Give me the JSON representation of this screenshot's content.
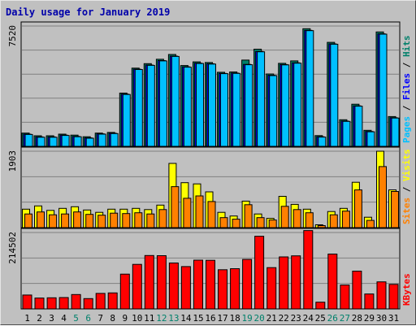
{
  "chart_data": {
    "type": "bar",
    "title": "Daily usage for January 2019",
    "x": [
      "1",
      "2",
      "3",
      "4",
      "5",
      "6",
      "7",
      "8",
      "9",
      "10",
      "11",
      "12",
      "13",
      "14",
      "15",
      "16",
      "17",
      "18",
      "19",
      "20",
      "21",
      "22",
      "23",
      "24",
      "25",
      "26",
      "27",
      "28",
      "29",
      "30",
      "31"
    ],
    "weekend_days": [
      "5",
      "6",
      "12",
      "13",
      "19",
      "20",
      "26",
      "27"
    ],
    "panels": [
      {
        "name": "top",
        "max_label": "7520",
        "ylim": [
          0,
          7520
        ],
        "legend": [
          "Pages",
          "Files",
          "Hits"
        ],
        "series": [
          {
            "name": "Hits",
            "color": "#00806b",
            "values": [
              830,
              660,
              660,
              760,
              700,
              600,
              830,
              870,
              3330,
              4890,
              5170,
              5440,
              5740,
              5050,
              5280,
              5240,
              4630,
              4650,
              5390,
              6070,
              4520,
              5190,
              5340,
              7350,
              670,
              6500,
              1660,
              2630,
              1000,
              7150,
              1860
            ]
          },
          {
            "name": "Files",
            "color": "#0000ff",
            "values": [
              760,
              590,
              590,
              700,
              620,
              530,
              780,
              820,
              3260,
              4820,
              5080,
              5360,
              5640,
              4970,
              5200,
              5160,
              4560,
              4580,
              5120,
              5930,
              4440,
              5110,
              5220,
              7250,
              600,
              6400,
              1580,
              2530,
              930,
              7030,
              1790
            ]
          },
          {
            "name": "Pages",
            "color": "#00c0ff",
            "values": [
              740,
              570,
              570,
              680,
              600,
              510,
              760,
              800,
              3240,
              4800,
              5060,
              5340,
              5620,
              4950,
              5180,
              5140,
              4540,
              4560,
              5100,
              5910,
              4420,
              5090,
              5200,
              7230,
              580,
              6380,
              1560,
              2510,
              910,
              7010,
              1770
            ]
          }
        ]
      },
      {
        "name": "middle",
        "max_label": "1903",
        "ylim": [
          0,
          1903
        ],
        "legend": [
          "Sites",
          "Visits"
        ],
        "series": [
          {
            "name": "Visits",
            "color": "#ffff00",
            "values": [
              460,
              540,
              430,
              480,
              520,
              440,
              380,
              460,
              460,
              480,
              450,
              560,
              1600,
              1120,
              1090,
              890,
              380,
              290,
              660,
              340,
              230,
              780,
              580,
              460,
              70,
              400,
              480,
              1130,
              260,
              1903,
              940
            ]
          },
          {
            "name": "Sites",
            "color": "#ff8000",
            "values": [
              340,
              390,
              320,
              340,
              390,
              330,
              310,
              360,
              350,
              370,
              340,
              450,
              1020,
              730,
              790,
              650,
              250,
              210,
              570,
              250,
              190,
              530,
              450,
              370,
              50,
              320,
              410,
              940,
              180,
              1520,
              900
            ]
          }
        ]
      },
      {
        "name": "bottom",
        "max_label": "214502",
        "ylim": [
          0,
          214502
        ],
        "legend": [
          "KBytes"
        ],
        "series": [
          {
            "name": "KBytes",
            "color": "#ff0000",
            "values": [
              39000,
              30500,
              31200,
              32000,
              40500,
              29000,
              43500,
              45000,
              97600,
              125000,
              150000,
              149500,
              129000,
              119000,
              137000,
              136500,
              110000,
              113000,
              139000,
              204000,
              116000,
              146000,
              149000,
              220000,
              19000,
              154000,
              67000,
              106000,
              42000,
              76000,
              69000
            ]
          }
        ]
      }
    ]
  }
}
